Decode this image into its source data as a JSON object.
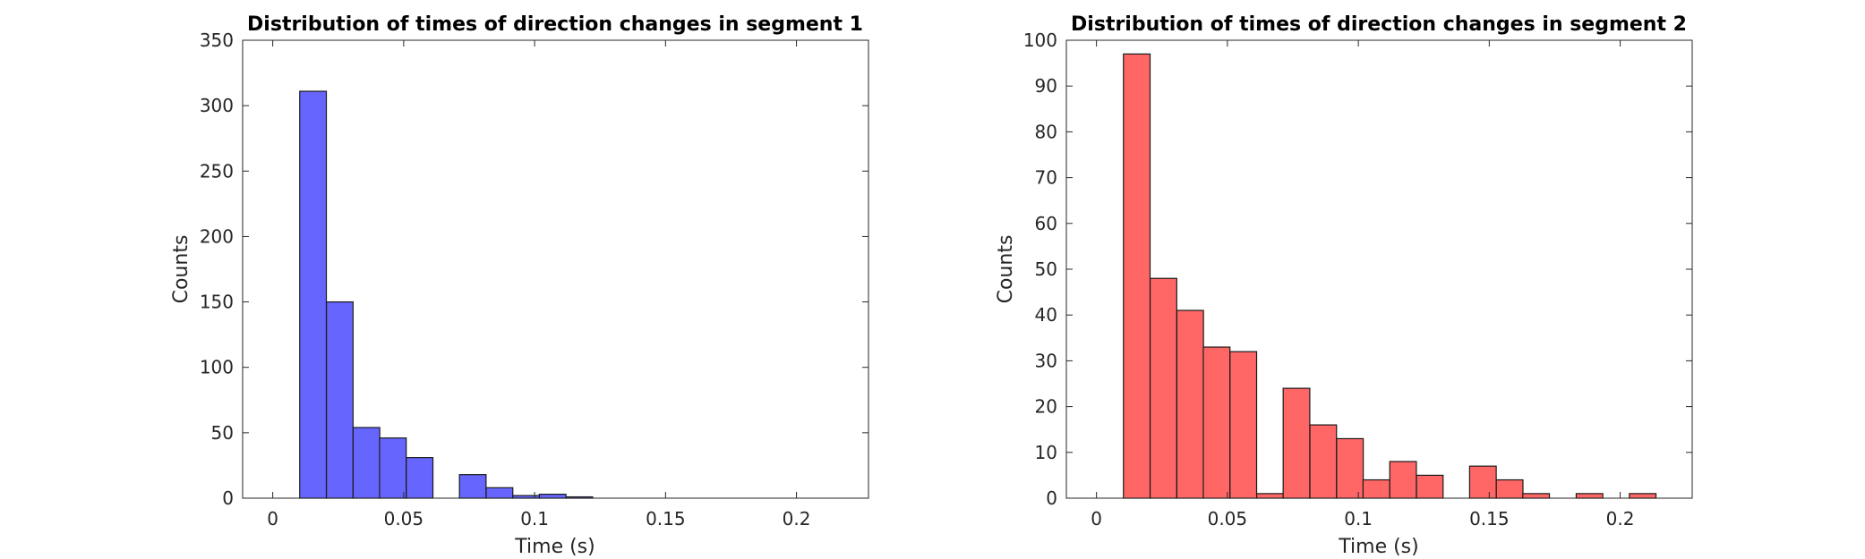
{
  "chart_data": [
    {
      "type": "bar",
      "title": "Distribution of times of direction changes in segment 1",
      "xlabel": "Time (s)",
      "ylabel": "Counts",
      "xlim": [
        -0.0115,
        0.2275
      ],
      "ylim": [
        0,
        350
      ],
      "xticks": [
        0,
        0.05,
        0.1,
        0.15,
        0.2
      ],
      "xtick_labels": [
        "0",
        "0.05",
        "0.1",
        "0.15",
        "0.2"
      ],
      "yticks": [
        0,
        50,
        100,
        150,
        200,
        250,
        300,
        350
      ],
      "ytick_labels": [
        "0",
        "50",
        "100",
        "150",
        "200",
        "250",
        "300",
        "350"
      ],
      "bin_width": 0.01017,
      "bins": [
        {
          "x0": 0.0103,
          "value": 311
        },
        {
          "x0": 0.0205,
          "value": 150
        },
        {
          "x0": 0.0307,
          "value": 54
        },
        {
          "x0": 0.0408,
          "value": 46
        },
        {
          "x0": 0.051,
          "value": 31
        },
        {
          "x0": 0.0612,
          "value": 0
        },
        {
          "x0": 0.0713,
          "value": 18
        },
        {
          "x0": 0.0815,
          "value": 8
        },
        {
          "x0": 0.0917,
          "value": 2
        },
        {
          "x0": 0.1018,
          "value": 3
        },
        {
          "x0": 0.112,
          "value": 1
        }
      ],
      "color": "#6666ff",
      "grid": false
    },
    {
      "type": "bar",
      "title": "Distribution of times of direction changes in segment 2",
      "xlabel": "Time (s)",
      "ylabel": "Counts",
      "xlim": [
        -0.0115,
        0.2275
      ],
      "ylim": [
        0,
        100
      ],
      "xticks": [
        0,
        0.05,
        0.1,
        0.15,
        0.2
      ],
      "xtick_labels": [
        "0",
        "0.05",
        "0.1",
        "0.15",
        "0.2"
      ],
      "yticks": [
        0,
        10,
        20,
        30,
        40,
        50,
        60,
        70,
        80,
        90,
        100
      ],
      "ytick_labels": [
        "0",
        "10",
        "20",
        "30",
        "40",
        "50",
        "60",
        "70",
        "80",
        "90",
        "100"
      ],
      "bin_width": 0.01017,
      "bins": [
        {
          "x0": 0.0103,
          "value": 97
        },
        {
          "x0": 0.0205,
          "value": 48
        },
        {
          "x0": 0.0307,
          "value": 41
        },
        {
          "x0": 0.0408,
          "value": 33
        },
        {
          "x0": 0.051,
          "value": 32
        },
        {
          "x0": 0.0612,
          "value": 1
        },
        {
          "x0": 0.0713,
          "value": 24
        },
        {
          "x0": 0.0815,
          "value": 16
        },
        {
          "x0": 0.0917,
          "value": 13
        },
        {
          "x0": 0.1018,
          "value": 4
        },
        {
          "x0": 0.112,
          "value": 8
        },
        {
          "x0": 0.1222,
          "value": 5
        },
        {
          "x0": 0.1323,
          "value": 0
        },
        {
          "x0": 0.1425,
          "value": 7
        },
        {
          "x0": 0.1527,
          "value": 4
        },
        {
          "x0": 0.1628,
          "value": 1
        },
        {
          "x0": 0.173,
          "value": 0
        },
        {
          "x0": 0.1832,
          "value": 1
        },
        {
          "x0": 0.1933,
          "value": 0
        },
        {
          "x0": 0.2035,
          "value": 1
        }
      ],
      "color": "#ff6666",
      "grid": false
    }
  ]
}
